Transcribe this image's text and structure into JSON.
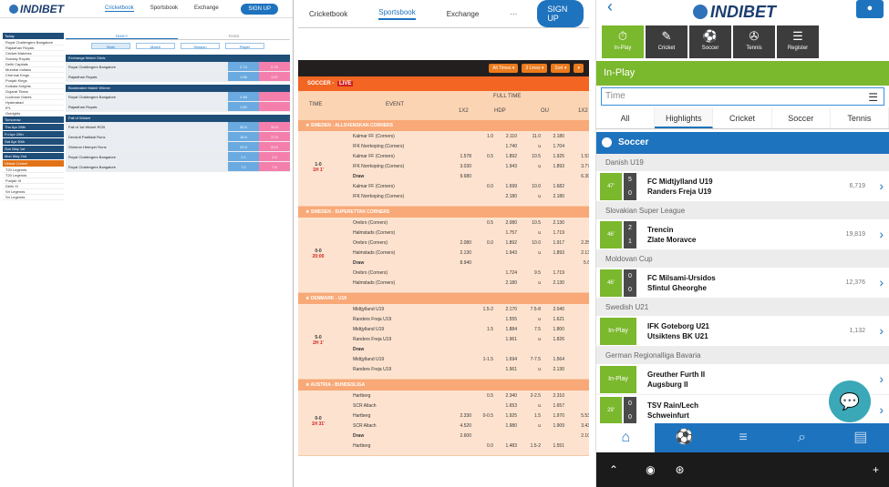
{
  "p1": {
    "logo": "INDIBET",
    "nav": [
      "Cricketbook",
      "Sportsbook",
      "Exchange"
    ],
    "signup": "SIGN UP",
    "sidebar": [
      {
        "h": "Today"
      },
      {
        "i": "Royal Challengers Bangalore"
      },
      {
        "i": "Rajasthan Royals"
      },
      {
        "i": "Cricket Matches"
      },
      {
        "i": "Sunday Royals"
      },
      {
        "i": "Delhi Capitals"
      },
      {
        "i": "Mumbai Indians"
      },
      {
        "i": "Chennai Kings"
      },
      {
        "i": "Punjab Kings"
      },
      {
        "i": "Kolkata Knights"
      },
      {
        "i": "Gujarat Titans"
      },
      {
        "i": "Lucknow Giants"
      },
      {
        "i": "Hyderabad"
      },
      {
        "i": "IPL"
      },
      {
        "i": "Outrights"
      },
      {
        "h": "Tomorrow"
      },
      {
        "h": "Thu Apr 28th"
      },
      {
        "h": "Fri Apr 29th"
      },
      {
        "h": "Sat Apr 30th"
      },
      {
        "h": "Sun May 1st"
      },
      {
        "h": "Mon May 2nd"
      },
      {
        "h": "Virtual Cricket",
        "org": true
      },
      {
        "i": "T20 Legends"
      },
      {
        "i": "T20 Legends"
      },
      {
        "i": "Punjab XI"
      },
      {
        "i": "Delhi XI"
      },
      {
        "i": "Sri Legends"
      },
      {
        "i": "Sri Legends"
      }
    ],
    "tabs": [
      "FANCY",
      "FIXED"
    ],
    "btns": [
      "Main",
      "Match",
      "Session",
      "Player"
    ],
    "sections": [
      {
        "h": "Exchange Match Odds",
        "rows": [
          {
            "n": "Royal Challengers Bangalore",
            "b": "2.74",
            "l": "2.76"
          },
          {
            "n": "Rajasthan Royals",
            "b": "1.56",
            "l": "1.57"
          }
        ]
      },
      {
        "h": "Bookmaker Match Winner",
        "rows": [
          {
            "n": "Royal Challengers Bangalore",
            "b": "2.48",
            "l": ""
          },
          {
            "n": "Rajasthan Royals",
            "b": "1.52",
            "l": ""
          }
        ]
      },
      {
        "h": "Fall of Wicket",
        "rows": [
          {
            "n": "Fall of 1st Wicket RCB",
            "b": "30.0",
            "l": "31.0"
          },
          {
            "n": "Devdutt Padikkal Runs",
            "b": "16.0",
            "l": "17.0"
          },
          {
            "n": "Shimron Hetmyer Runs",
            "b": "22.0",
            "l": "23.0"
          },
          {
            "n": "Royal Challengers Bangalore",
            "b": "2.1",
            "l": "2.2"
          },
          {
            "n": "Royal Challengers Bangalore",
            "b": "7.0",
            "l": "7.5"
          }
        ]
      }
    ]
  },
  "p2": {
    "nav": [
      "Cricketbook",
      "Sportsbook",
      "Exchange",
      "···"
    ],
    "signup": "SIGN UP",
    "filters": [
      "All Times ▾",
      "3 Lines ▾",
      "Sort ▾",
      "▾"
    ],
    "sport": "SOCCER -",
    "live": "LIVE",
    "head": {
      "time": "TIME",
      "event": "EVENT",
      "full": "FULL TIME",
      "c1": "1X2",
      "c2": "HDP",
      "c3": "OU",
      "c4": "1X2"
    },
    "leagues": [
      {
        "name": "SWEDEN - ALLSVENSKAN CORNERS",
        "time": "1-0",
        "min": "1H 1'",
        "lines": [
          {
            "t": "Kalmar FF (Corners)",
            "h": "1.0",
            "hv": "2.110",
            "o": "11.0",
            "ov": "2.180"
          },
          {
            "t": "IFK Norrkoping (Corners)",
            "h": "",
            "hv": "1.740",
            "o": "u",
            "ov": "1.704"
          },
          {
            "t": "Kalmar FF (Corners)",
            "x": "1.578",
            "h": "0.5",
            "hv": "1.892",
            "o": "10.5",
            "ov": "1.925",
            "y": "1.53"
          },
          {
            "t": "IFK Norrkoping (Corners)",
            "x": "3.030",
            "h": "",
            "hv": "1.943",
            "o": "u",
            "ov": "1.893",
            "y": "3.77"
          },
          {
            "t": "Draw",
            "x": "9.680",
            "h": "",
            "hv": "",
            "o": "",
            "ov": "",
            "y": "6.30"
          },
          {
            "t": "Kalmar FF (Corners)",
            "h": "0.0",
            "hv": "1.699",
            "o": "10.0",
            "ov": "1.682"
          },
          {
            "t": "IFK Norrkoping (Corners)",
            "h": "",
            "hv": "2.180",
            "o": "u",
            "ov": "2.180"
          }
        ]
      },
      {
        "name": "SWEDEN - SUPERETTAN CORNERS",
        "time": "0-0",
        "min": "20:00",
        "lines": [
          {
            "t": "Orebro (Corners)",
            "h": "0.5",
            "hv": "2.080",
            "o": "10.5",
            "ov": "2.130"
          },
          {
            "t": "Halmstads (Corners)",
            "h": "",
            "hv": "1.757",
            "o": "u",
            "ov": "1.719"
          },
          {
            "t": "Orebro (Corners)",
            "x": "2.080",
            "h": "0.0",
            "hv": "1.892",
            "o": "10.0",
            "ov": "1.917",
            "y": "2.25"
          },
          {
            "t": "Halmstads (Corners)",
            "x": "2.130",
            "h": "",
            "hv": "1.943",
            "o": "u",
            "ov": "1.893",
            "y": "2.13"
          },
          {
            "t": "Draw",
            "x": "8.940",
            "h": "",
            "hv": "",
            "o": "",
            "ov": "",
            "y": "5.6"
          },
          {
            "t": "Orebro (Corners)",
            "h": "",
            "hv": "1.724",
            "o": "9.5",
            "ov": "1.719"
          },
          {
            "t": "Halmstads (Corners)",
            "h": "",
            "hv": "2.180",
            "o": "u",
            "ov": "2.130"
          }
        ]
      },
      {
        "name": "DENMARK - U19",
        "time": "5-0",
        "min": "2H 1'",
        "lines": [
          {
            "t": "Midtjylland U19",
            "h": "1.5-2",
            "hv": "2.170",
            "o": "7.5-8",
            "ov": "2.040"
          },
          {
            "t": "Randers Freja U19",
            "h": "",
            "hv": "1.555",
            "o": "u",
            "ov": "1.621"
          },
          {
            "t": "Midtjylland U19",
            "h": "1.5",
            "hv": "1.884",
            "o": "7.5",
            "ov": "1.800"
          },
          {
            "t": "Randers Freja U19",
            "h": "",
            "hv": "1.961",
            "o": "u",
            "ov": "1.826"
          },
          {
            "t": "Draw",
            "h": "",
            "hv": "",
            "o": "",
            "ov": ""
          },
          {
            "t": "Midtjylland U19",
            "h": "1-1.5",
            "hv": "1.694",
            "o": "7-7.5",
            "ov": "1.564"
          },
          {
            "t": "Randers Freja U19",
            "h": "",
            "hv": "1.961",
            "o": "u",
            "ov": "2.130"
          }
        ]
      },
      {
        "name": "AUSTRIA - BUNDESLIGA",
        "time": "0-0",
        "min": "1H 31'",
        "lines": [
          {
            "t": "Hartberg",
            "h": "0.5",
            "hv": "2.340",
            "o": "2-2.5",
            "ov": "2.310"
          },
          {
            "t": "SCR Altach",
            "h": "",
            "hv": "1.653",
            "o": "u",
            "ov": "1.657"
          },
          {
            "t": "Hartberg",
            "x": "2.330",
            "h": "0-0.5",
            "hv": "1.925",
            "o": "1.5",
            "ov": "1.970",
            "y": "5.53"
          },
          {
            "t": "SCR Altach",
            "x": "4.520",
            "h": "",
            "hv": "1.980",
            "o": "u",
            "ov": "1.909",
            "y": "3.43"
          },
          {
            "t": "Draw",
            "x": "2.600",
            "h": "",
            "hv": "",
            "o": "",
            "ov": "",
            "y": "2.10"
          },
          {
            "t": "Hartberg",
            "h": "0.0",
            "hv": "1.483",
            "o": "1.5-2",
            "ov": "1.551"
          }
        ]
      }
    ]
  },
  "p3": {
    "logo": "INDIBET",
    "icons": [
      {
        "g": "⏱",
        "l": "In-Play"
      },
      {
        "g": "✎",
        "l": "Cricket"
      },
      {
        "g": "⚽",
        "l": "Soccer"
      },
      {
        "g": "✇",
        "l": "Tennis"
      },
      {
        "g": "☰",
        "l": "Register"
      }
    ],
    "inplay": "In-Play",
    "time_placeholder": "Time",
    "tabs": [
      "All",
      "Highlights",
      "Cricket",
      "Soccer",
      "Tennis"
    ],
    "sport": "Soccer",
    "groups": [
      {
        "league": "Danish U19",
        "matches": [
          {
            "min": "47'",
            "s1": "5",
            "s2": "0",
            "t1": "FC Midtjylland U19",
            "t2": "Randers Freja U19",
            "cnt": "6,719"
          }
        ]
      },
      {
        "league": "Slovakian Super League",
        "matches": [
          {
            "min": "46'",
            "s1": "2",
            "s2": "1",
            "t1": "Trencin",
            "t2": "Zlate Moravce",
            "cnt": "19,819"
          }
        ]
      },
      {
        "league": "Moldovan Cup",
        "matches": [
          {
            "min": "46'",
            "s1": "0",
            "s2": "0",
            "t1": "FC Milsami-Ursidos",
            "t2": "Sfintul Gheorghe",
            "cnt": "12,376"
          }
        ]
      },
      {
        "league": "Swedish U21",
        "matches": [
          {
            "inplay": "In-Play",
            "t1": "IFK Goteborg U21",
            "t2": "Utsiktens BK U21",
            "cnt": "1,132"
          }
        ]
      },
      {
        "league": "German Regionalliga Bavaria",
        "matches": [
          {
            "inplay": "In-Play",
            "t1": "Greuther Furth II",
            "t2": "Augsburg II",
            "cnt": ""
          },
          {
            "min": "29'",
            "s1": "0",
            "s2": "0",
            "t1": "TSV Rain/Lech",
            "t2": "Schweinfurt",
            "cnt": ""
          }
        ]
      }
    ]
  }
}
